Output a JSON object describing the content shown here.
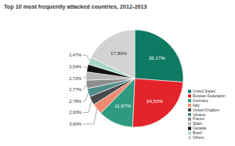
{
  "chart_data": {
    "type": "pie",
    "title": "Top 10 most frequently attacked countries, 2012-2013",
    "categories": [
      "United States",
      "Russian Federation",
      "Germany",
      "Italy",
      "United Kingdom",
      "Ukraine",
      "France",
      "Spain",
      "Canada",
      "Brazil",
      "Others"
    ],
    "values": [
      26.17,
      24.53,
      11.67,
      3.6,
      2.93,
      2.78,
      2.77,
      2.72,
      2.54,
      2.47,
      17.8
    ],
    "value_labels": [
      "26,17%",
      "24,53%",
      "11,67%",
      "3,60%",
      "2,93%",
      "2,78%",
      "2,77%",
      "2,72%",
      "2,54%",
      "2,47%",
      "17,80%"
    ],
    "colors": [
      "#0f7a63",
      "#e3242b",
      "#2e9a7f",
      "#f08a72",
      "#4a4a4a",
      "#4f8c8a",
      "#8d8d8d",
      "#b6b6b6",
      "#111111",
      "#a7d5c9",
      "#d3d3d3"
    ],
    "data_labels": true,
    "legend": "right"
  }
}
